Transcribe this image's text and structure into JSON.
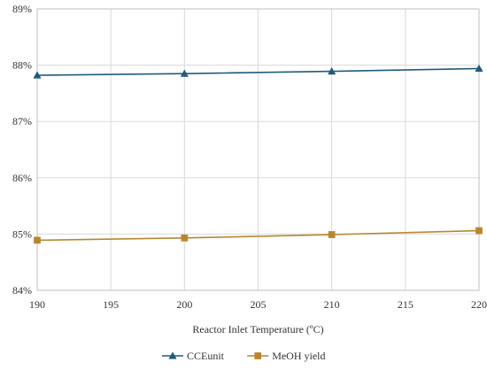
{
  "chart_data": {
    "type": "line",
    "title": "",
    "xlabel": "Reactor Inlet Temperature (ºC)",
    "ylabel": "",
    "x": [
      190,
      200,
      210,
      220
    ],
    "xlim": [
      190,
      220
    ],
    "xticks": [
      190,
      195,
      200,
      205,
      210,
      215,
      220
    ],
    "ylim": [
      84,
      89
    ],
    "yticks": [
      84,
      85,
      86,
      87,
      88,
      89
    ],
    "ytick_labels": [
      "84%",
      "85%",
      "86%",
      "87%",
      "88%",
      "89%"
    ],
    "xtick_labels": [
      "190",
      "195",
      "200",
      "205",
      "210",
      "215",
      "220"
    ],
    "grid": true,
    "legend_position": "bottom",
    "series": [
      {
        "name": "CCEunit",
        "values": [
          87.82,
          87.85,
          87.89,
          87.94
        ],
        "color": "#1F5C7A",
        "marker": "triangle"
      },
      {
        "name": "MeOH yield",
        "values": [
          84.89,
          84.93,
          84.99,
          85.06
        ],
        "color": "#B8862E",
        "marker": "square"
      }
    ]
  }
}
